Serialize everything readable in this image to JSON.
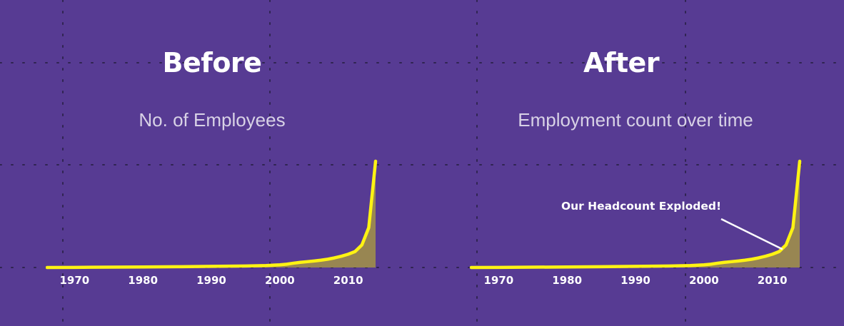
{
  "colors": {
    "background": "#573b93",
    "line": "#fff313",
    "area": "#9c8a4e",
    "grid": "#2f2450",
    "tick_text": "#ffffff",
    "annotation": "#ffffff"
  },
  "chart_data": [
    {
      "type": "area",
      "title": "Before",
      "subtitle": "No. of Employees",
      "x_ticks": [
        1970,
        1980,
        1990,
        2000,
        2010
      ],
      "xlim": [
        1966,
        2014
      ],
      "ylim": [
        0,
        16000
      ],
      "grid": "dotted",
      "series": [
        {
          "x": [
            1966,
            1970,
            1975,
            1980,
            1985,
            1990,
            1995,
            1998,
            2000,
            2001,
            2002,
            2003,
            2004,
            2005,
            2006,
            2007,
            2008,
            2009,
            2010,
            2011,
            2012,
            2013,
            2014
          ],
          "values": [
            0,
            20,
            50,
            80,
            120,
            170,
            230,
            300,
            400,
            500,
            650,
            780,
            880,
            980,
            1100,
            1250,
            1450,
            1700,
            2000,
            2400,
            3400,
            6000,
            16000
          ]
        }
      ]
    },
    {
      "type": "area",
      "title": "After",
      "subtitle": "Employment count over time",
      "x_ticks": [
        1970,
        1980,
        1990,
        2000,
        2010
      ],
      "xlim": [
        1966,
        2014
      ],
      "ylim": [
        0,
        16000
      ],
      "grid": "dotted",
      "annotation": "Our Headcount Exploded!",
      "annotation_target": {
        "x": 2012,
        "y": 3400
      },
      "series": [
        {
          "x": [
            1966,
            1970,
            1975,
            1980,
            1985,
            1990,
            1995,
            1998,
            2000,
            2001,
            2002,
            2003,
            2004,
            2005,
            2006,
            2007,
            2008,
            2009,
            2010,
            2011,
            2012,
            2013,
            2014
          ],
          "values": [
            0,
            20,
            50,
            80,
            120,
            170,
            230,
            300,
            400,
            500,
            650,
            780,
            880,
            980,
            1100,
            1250,
            1450,
            1700,
            2000,
            2400,
            3400,
            6000,
            16000
          ]
        }
      ]
    }
  ]
}
